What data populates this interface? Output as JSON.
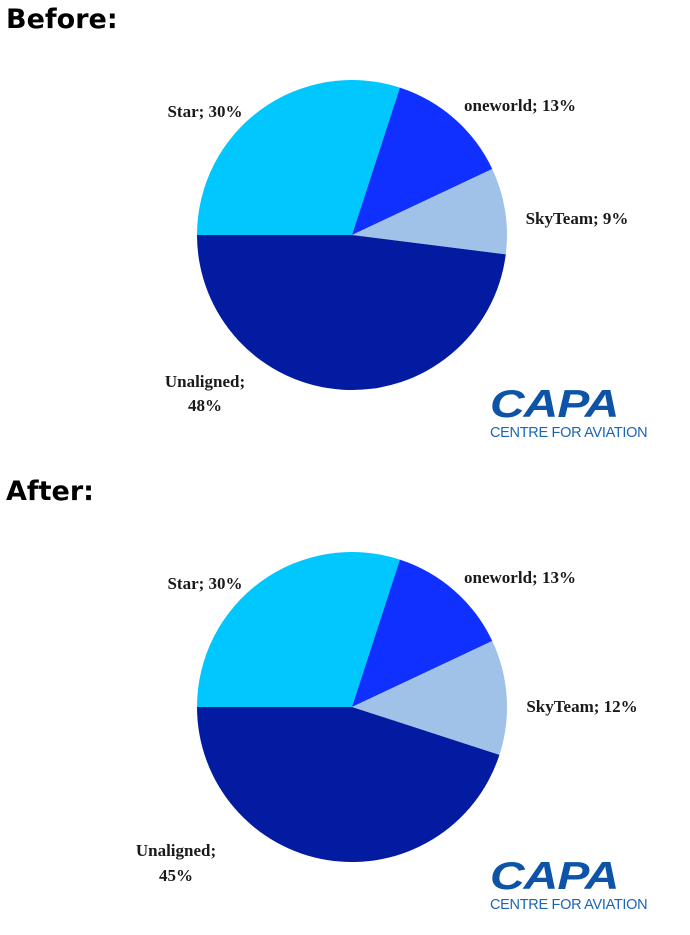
{
  "chart_data": [
    {
      "type": "pie",
      "heading": "Before:",
      "title": "",
      "slices": [
        {
          "label": "Star; 30%",
          "value": 30,
          "color": "#00c8ff"
        },
        {
          "label": "oneworld; 13%",
          "value": 13,
          "color": "#1030ff"
        },
        {
          "label": "SkyTeam; 9%",
          "value": 9,
          "color": "#a0c2e8"
        },
        {
          "label": "Unaligned;",
          "label2": "48%",
          "value": 48,
          "color": "#031ba0"
        }
      ]
    },
    {
      "type": "pie",
      "heading": "After:",
      "title": "",
      "slices": [
        {
          "label": "Star; 30%",
          "value": 30,
          "color": "#00c8ff"
        },
        {
          "label": "oneworld; 13%",
          "value": 13,
          "color": "#1030ff"
        },
        {
          "label": "SkyTeam; 12%",
          "value": 12,
          "color": "#a0c2e8"
        },
        {
          "label": "Unaligned;",
          "label2": "45%",
          "value": 45,
          "color": "#031ba0"
        }
      ]
    }
  ],
  "logo": {
    "word": "CAPA",
    "subtitle": "CENTRE FOR AVIATION",
    "color": "#0d53a7"
  }
}
